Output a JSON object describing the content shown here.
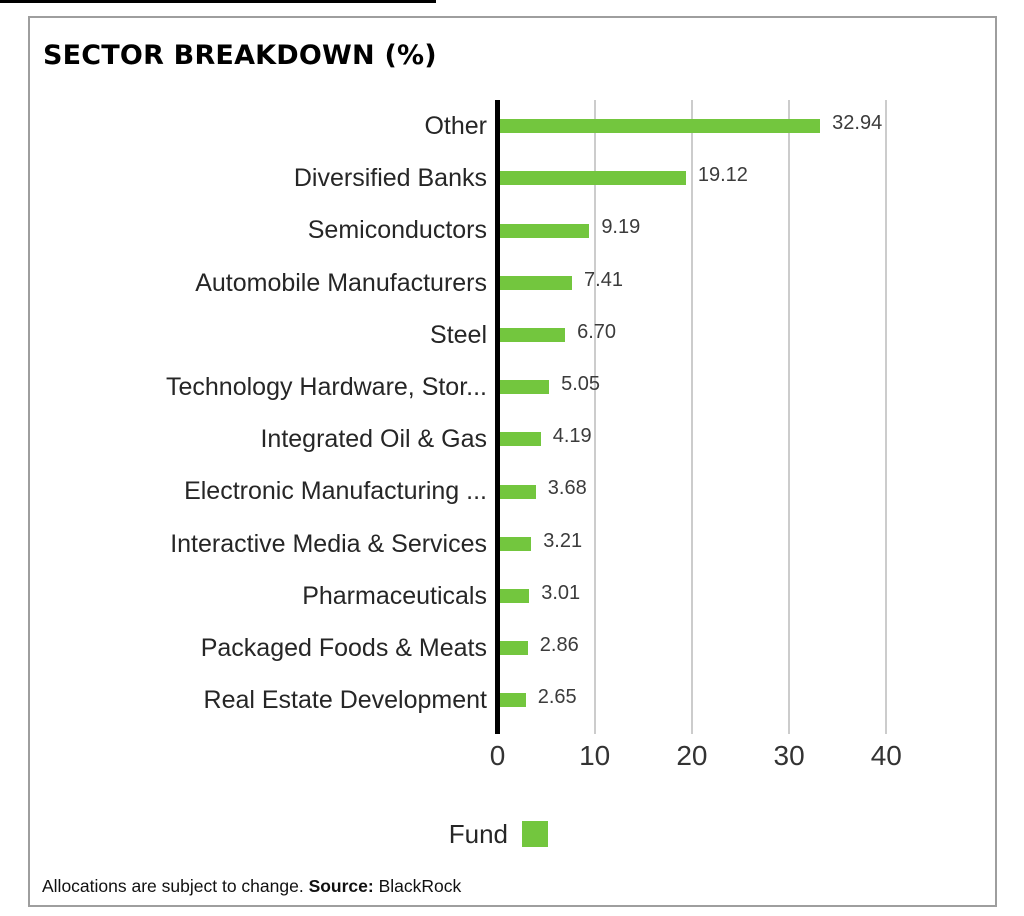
{
  "panel": {
    "title": "SECTOR BREAKDOWN (%)"
  },
  "chart_data": {
    "type": "bar",
    "orientation": "horizontal",
    "title": "SECTOR BREAKDOWN (%)",
    "categories": [
      "Other",
      "Diversified Banks",
      "Semiconductors",
      "Automobile Manufacturers",
      "Steel",
      "Technology Hardware, Stor...",
      "Integrated Oil & Gas",
      "Electronic Manufacturing ...",
      "Interactive Media & Services",
      "Pharmaceuticals",
      "Packaged Foods & Meats",
      "Real Estate Development"
    ],
    "series": [
      {
        "name": "Fund",
        "values": [
          32.94,
          19.12,
          9.19,
          7.41,
          6.7,
          5.05,
          4.19,
          3.68,
          3.21,
          3.01,
          2.86,
          2.65
        ]
      }
    ],
    "value_labels": [
      "32.94",
      "19.12",
      "9.19",
      "7.41",
      "6.70",
      "5.05",
      "4.19",
      "3.68",
      "3.21",
      "3.01",
      "2.86",
      "2.65"
    ],
    "x_ticks": [
      "0",
      "10",
      "20",
      "30",
      "40"
    ],
    "xlim": [
      0,
      45
    ],
    "grid": "vertical-only",
    "legend_label": "Fund",
    "legend_position": "bottom",
    "bar_color": "#73C63E",
    "gridline_color": "#cccccc",
    "axis_color": "#000000",
    "category_label_color": "#262626",
    "value_label_color": "#3b3b3b"
  },
  "footer": {
    "note": "Allocations are subject to change. ",
    "source_label": "Source:",
    "source_value": " BlackRock"
  }
}
